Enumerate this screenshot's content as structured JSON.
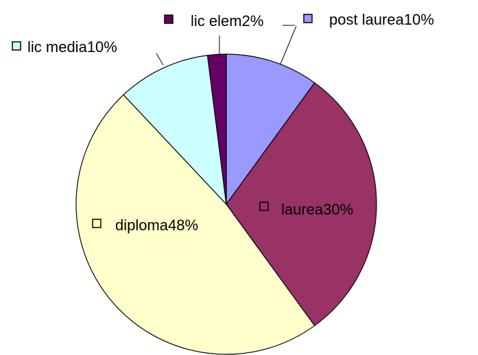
{
  "chart_data": {
    "type": "pie",
    "categories": [
      "post laurea",
      "laurea",
      "diploma",
      "lic media",
      "lic elem"
    ],
    "values": [
      10,
      30,
      48,
      10,
      2
    ],
    "value_labels": [
      "10%",
      "30%",
      "48%",
      "10%",
      "2%"
    ],
    "colors": [
      "#9999ff",
      "#993366",
      "#ffffcc",
      "#ccffff",
      "#660066"
    ]
  }
}
